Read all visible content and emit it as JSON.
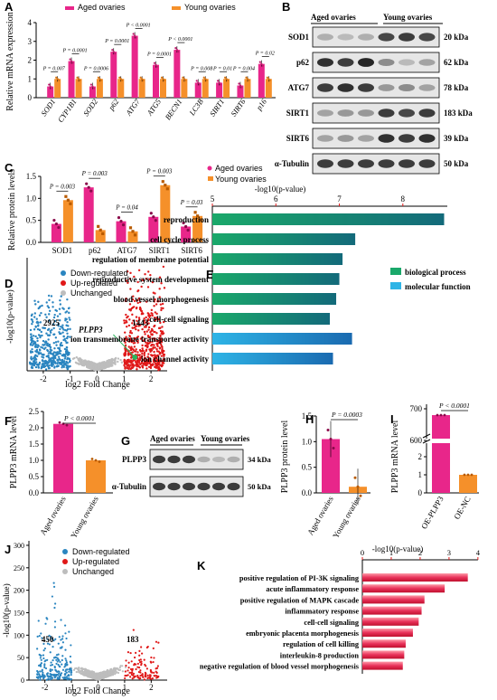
{
  "colors": {
    "aged": "#e8268a",
    "young": "#f5902a",
    "down": "#2a85c0",
    "up": "#e01818",
    "unch": "#bdbdbd",
    "bp": "#1aa86a",
    "mf": "#2eb4e6",
    "kbar": "#e8325a",
    "plpp3": "#2db55d"
  },
  "panels": {
    "A": {
      "letter": "A",
      "legend": [
        "Aged ovaries",
        "Young ovaries"
      ],
      "ylabel": "Relative mRNA expression",
      "yticks": [
        "0",
        "1",
        "2",
        "3",
        "4"
      ],
      "ylim": [
        0,
        4
      ],
      "genes": [
        "SOD1",
        "CYP1B1",
        "SOD2",
        "p62",
        "ATG7",
        "ATG5",
        "BECN1",
        "LC3B",
        "SIRT1",
        "SIRT6",
        "p16"
      ],
      "aged": [
        0.6,
        1.95,
        0.6,
        2.45,
        3.3,
        1.75,
        2.55,
        0.8,
        0.8,
        0.65,
        1.8
      ],
      "young": [
        1.0,
        1.0,
        1.0,
        1.0,
        1.0,
        1.0,
        1.0,
        1.0,
        1.0,
        1.0,
        1.0
      ],
      "pvals": [
        "P = 0.007",
        "P = 0.0001",
        "P = 0.0006",
        "P = 0.0001",
        "P < 0.0001",
        "P = 0.0001",
        "P < 0.0001",
        "P = 0.008",
        "P = 0.01",
        "P = 0.004",
        "P = 0.02"
      ]
    },
    "B": {
      "letter": "B",
      "groups": [
        "Aged ovaries",
        "Young ovaries"
      ],
      "rows": [
        "SOD1",
        "p62",
        "ATG7",
        "SIRT1",
        "SIRT6",
        "α-Tubulin"
      ],
      "sizes": [
        "20 kDa",
        "62 kDa",
        "78 kDa",
        "183 kDa",
        "39 kDa",
        "50 kDa"
      ],
      "intensity": [
        [
          0.35,
          0.3,
          0.35,
          0.8,
          0.85,
          0.8
        ],
        [
          0.9,
          0.85,
          0.95,
          0.5,
          0.3,
          0.4
        ],
        [
          0.85,
          0.9,
          0.85,
          0.45,
          0.5,
          0.4
        ],
        [
          0.4,
          0.45,
          0.45,
          0.85,
          0.8,
          0.85
        ],
        [
          0.4,
          0.45,
          0.4,
          0.9,
          0.85,
          0.9
        ],
        [
          0.85,
          0.85,
          0.85,
          0.85,
          0.85,
          0.85
        ]
      ]
    },
    "C": {
      "letter": "C",
      "legend": [
        "Aged ovaries",
        "Young ovaries"
      ],
      "ylabel": "Relative protein levels",
      "yticks": [
        "0.0",
        "0.5",
        "1.0",
        "1.5"
      ],
      "ylim": [
        0,
        1.5
      ],
      "categories": [
        "SOD1",
        "p62",
        "ATG7",
        "SIRT1",
        "SIRT6"
      ],
      "aged": [
        0.42,
        1.25,
        0.48,
        0.58,
        0.36
      ],
      "young": [
        0.96,
        0.28,
        0.25,
        1.3,
        0.6
      ],
      "pvals": [
        "P = 0.003",
        "P = 0.003",
        "P = 0.04",
        "P = 0.003",
        "P = 0.03"
      ]
    },
    "D": {
      "letter": "D",
      "legend": [
        "Down-regulated",
        "Up-regulated",
        "Unchanged"
      ],
      "xlabel": "log2 Fold Change",
      "ylabel": "-log10(p-value)",
      "xticks": [
        "-2",
        "-1",
        "0",
        "1",
        "2"
      ],
      "xlim": [
        -2.6,
        2.6
      ],
      "ymax": 50,
      "down_count": "2925",
      "up_count": "1443",
      "gene": "PLPP3",
      "gene_point": {
        "x": 1.4,
        "y": 6
      }
    },
    "E": {
      "letter": "E",
      "axis_title": "-log10(p-value)",
      "ticks": [
        "5",
        "6",
        "7",
        "8"
      ],
      "xlim": [
        5,
        8.7
      ],
      "terms": [
        "reproduction",
        "cell cycle process",
        "regulation of membrane potential",
        "reproductive system development",
        "blood vessel morphogenesis",
        "cell-cell signaling",
        "ion transmembrane transporter activity",
        "ion channel activity"
      ],
      "values": [
        8.65,
        7.25,
        7.05,
        7.0,
        6.95,
        6.85,
        7.2,
        6.9
      ],
      "types": [
        "bp",
        "bp",
        "bp",
        "bp",
        "bp",
        "bp",
        "mf",
        "mf"
      ],
      "legend": [
        "biological process",
        "molecular function"
      ]
    },
    "F": {
      "letter": "F",
      "ylabel": "PLPP3 mRNA level",
      "yticks": [
        "0.0",
        "0.5",
        "1.0",
        "1.5",
        "2.0",
        "2.5"
      ],
      "ylim": [
        0,
        2.5
      ],
      "categories": [
        "Aged ovaries",
        "Young ovaries"
      ],
      "values": [
        2.12,
        1.0
      ],
      "pval": "P < 0.0001"
    },
    "G": {
      "letter": "G",
      "groups": [
        "Aged ovaries",
        "Young ovaries"
      ],
      "rows": [
        "PLPP3",
        "α-Tubulin"
      ],
      "sizes": [
        "34 kDa",
        "50 kDa"
      ],
      "intensity": [
        [
          0.85,
          0.85,
          0.85,
          0.35,
          0.3,
          0.35
        ],
        [
          0.85,
          0.85,
          0.85,
          0.85,
          0.85,
          0.85
        ]
      ]
    },
    "H": {
      "letter": "H",
      "ylabel": "PLPP3 protein level",
      "yticks": [
        "0.0",
        "0.5",
        "1.0",
        "1.5"
      ],
      "ylim": [
        0,
        1.5
      ],
      "categories": [
        "Aged ovaries",
        "Young ovaries"
      ],
      "values": [
        1.05,
        0.12
      ],
      "pval": "P = 0.0003"
    },
    "I": {
      "letter": "I",
      "ylabel": "PLPP3 mRNA level",
      "yticks": [
        "0",
        "1",
        "2",
        "600",
        "700"
      ],
      "categories": [
        "OE-PLPP3",
        "OE-NC"
      ],
      "values": [
        680,
        1.0
      ],
      "pval": "P < 0.0001"
    },
    "J": {
      "letter": "J",
      "legend": [
        "Down-regulated",
        "Up-regulated",
        "Unchanged"
      ],
      "xlabel": "log2 Fold Change",
      "ylabel": "-log10(p-value)",
      "xticks": [
        "-2",
        "-1",
        "0",
        "1",
        "2"
      ],
      "yticks": [
        "0",
        "50",
        "100",
        "150",
        "200",
        "250",
        "300"
      ],
      "xlim": [
        -2.6,
        2.6
      ],
      "ymax": 310,
      "down_count": "450",
      "up_count": "183"
    },
    "K": {
      "letter": "K",
      "axis_title": "-log10(p-value)",
      "ticks": [
        "0",
        "1",
        "2",
        "3",
        "4"
      ],
      "xlim": [
        0,
        4
      ],
      "terms": [
        "positive regulation of PI-3K signaling",
        "acute inflammatory response",
        "positive regulation of MAPK cascade",
        "inflammatory response",
        "cell-cell signaling",
        "embryonic placenta morphogenesis",
        "regulation of cell killing",
        "interleukin-8 production",
        "negative regulation of blood vessel morphogenesis"
      ],
      "values": [
        3.65,
        2.85,
        2.15,
        2.05,
        1.95,
        1.75,
        1.5,
        1.45,
        1.4
      ]
    }
  }
}
